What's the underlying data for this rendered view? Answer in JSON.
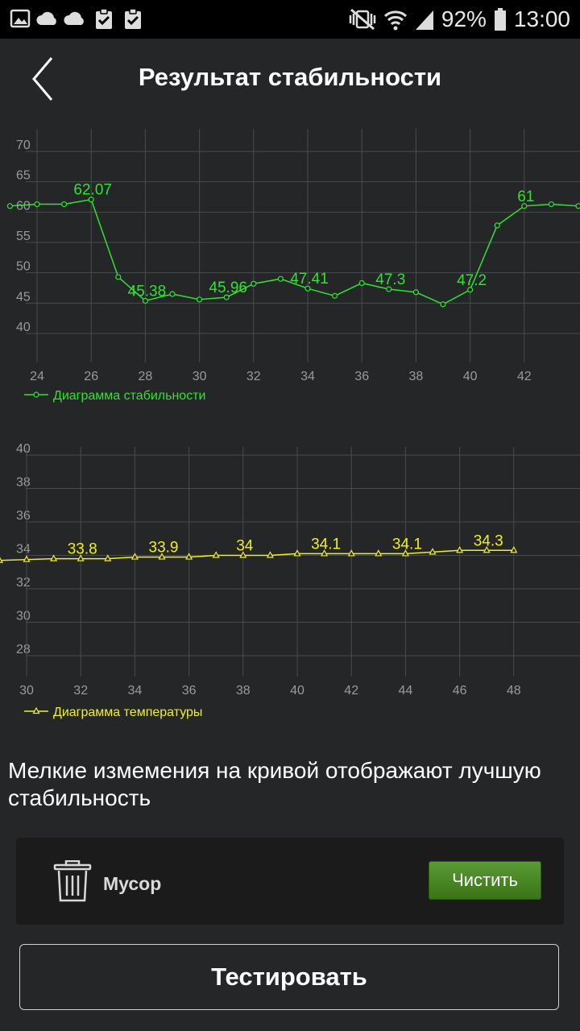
{
  "status_bar": {
    "battery": "92%",
    "time": "13:00",
    "icons_left": [
      "image-icon",
      "cloud-icon",
      "cloud-icon",
      "clipboard-check-icon",
      "clipboard-check-icon"
    ],
    "icons_right": [
      "vibrate-mute-icon",
      "wifi-icon",
      "signal-icon",
      "battery-icon"
    ]
  },
  "header": {
    "title": "Результат стабильности"
  },
  "chart_data": [
    {
      "type": "line",
      "x": [
        23,
        24,
        25,
        26,
        27,
        28,
        29,
        30,
        31,
        32,
        33,
        34,
        35,
        36,
        37,
        38,
        39,
        40,
        41,
        42,
        43,
        44
      ],
      "series": [
        {
          "name": "Диаграмма стабильности",
          "values": [
            61,
            61.3,
            61.3,
            62.07,
            49.3,
            45.38,
            46.5,
            45.6,
            45.96,
            48.2,
            49,
            47.41,
            46.2,
            48.3,
            47.3,
            46.8,
            44.8,
            47.2,
            57.8,
            61,
            61.3,
            61
          ],
          "data_labels": [
            {
              "x": 26,
              "text": "62.07"
            },
            {
              "x": 28,
              "text": "45.38"
            },
            {
              "x": 31,
              "text": "45.96"
            },
            {
              "x": 34,
              "text": "47.41"
            },
            {
              "x": 37,
              "text": "47.3"
            },
            {
              "x": 40,
              "text": "47.2"
            },
            {
              "x": 42,
              "text": "61"
            }
          ]
        }
      ],
      "x_ticks": [
        "24",
        "26",
        "28",
        "30",
        "32",
        "34",
        "36",
        "38",
        "40",
        "42"
      ],
      "y_ticks": [
        "70",
        "65",
        "60",
        "55",
        "50",
        "45",
        "40"
      ],
      "ylim": [
        40,
        70
      ],
      "grid": true,
      "legend": "bottom-left",
      "color": "#2fe32f"
    },
    {
      "type": "line",
      "x": [
        29,
        30,
        31,
        32,
        33,
        34,
        35,
        36,
        37,
        38,
        39,
        40,
        41,
        42,
        43,
        44,
        45,
        46,
        47,
        48
      ],
      "series": [
        {
          "name": "Диаграмма температуры",
          "values": [
            33.7,
            33.75,
            33.8,
            33.8,
            33.8,
            33.9,
            33.9,
            33.9,
            34,
            34,
            34,
            34.1,
            34.1,
            34.1,
            34.1,
            34.1,
            34.2,
            34.3,
            34.3,
            34.3
          ],
          "data_labels": [
            {
              "x": 32,
              "text": "33.8"
            },
            {
              "x": 35,
              "text": "33.9"
            },
            {
              "x": 38,
              "text": "34"
            },
            {
              "x": 41,
              "text": "34.1"
            },
            {
              "x": 44,
              "text": "34.1"
            },
            {
              "x": 47,
              "text": "34.3"
            }
          ]
        }
      ],
      "x_ticks": [
        "30",
        "32",
        "34",
        "36",
        "38",
        "40",
        "42",
        "44",
        "46",
        "48"
      ],
      "y_ticks": [
        "40",
        "38",
        "36",
        "34",
        "32",
        "30",
        "28"
      ],
      "ylim": [
        28,
        40
      ],
      "grid": true,
      "legend": "bottom-left",
      "color": "#f0f020"
    }
  ],
  "hint_text": "Мелкие измемения на кривой отображают лучшую стабильность",
  "junk_card": {
    "label": "Мусор",
    "button_label": "Чистить"
  },
  "test_button_label": "Тестировать",
  "colors": {
    "background": "#252628",
    "card": "#1b1b1c",
    "button_green": "#4a8a25"
  }
}
